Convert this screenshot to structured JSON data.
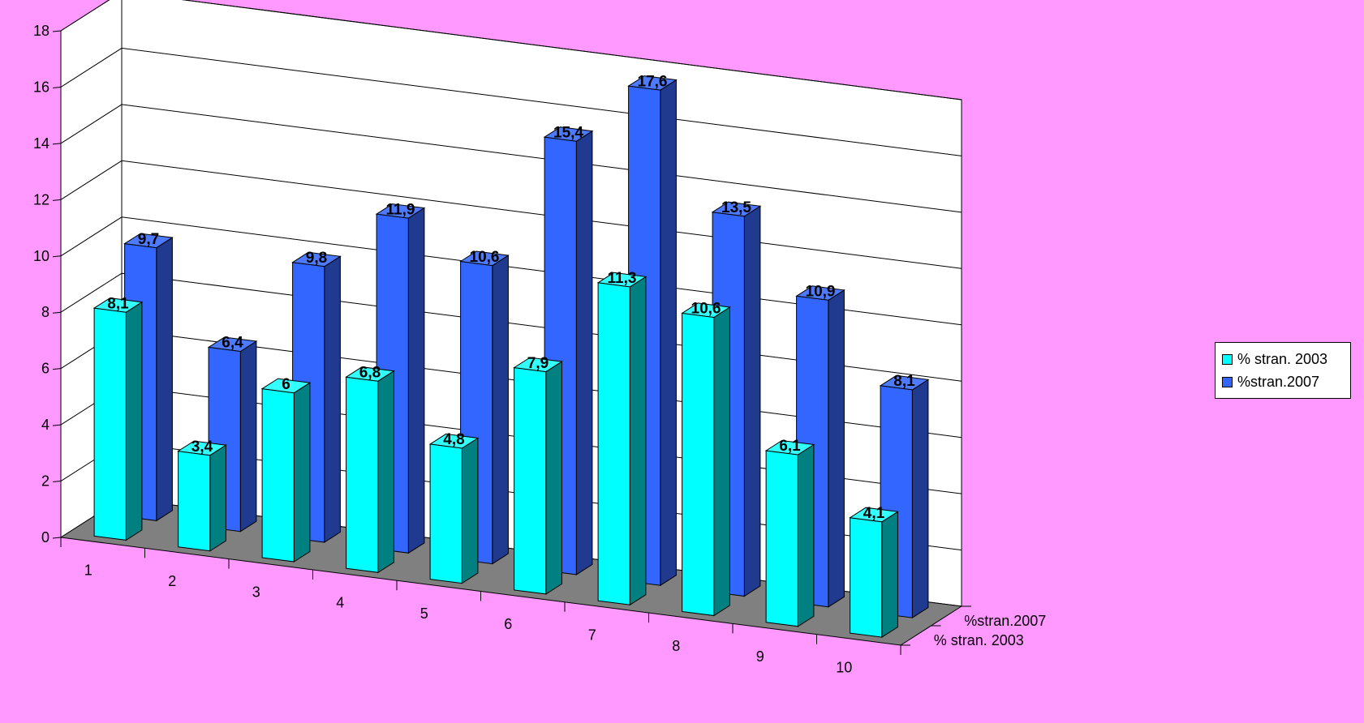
{
  "chart_data": {
    "type": "bar",
    "style": "3d-clustered-depth",
    "categories": [
      "1",
      "2",
      "3",
      "4",
      "5",
      "6",
      "7",
      "8",
      "9",
      "10"
    ],
    "series": [
      {
        "name": "% stran. 2003",
        "color": "#00ffff",
        "side": "#008080",
        "top": "#33ffff",
        "values": [
          8.1,
          3.4,
          6,
          6.8,
          4.8,
          7.9,
          11.3,
          10.6,
          6.1,
          4.1
        ],
        "labels": [
          "8,1",
          "3,4",
          "6",
          "6,8",
          "4,8",
          "7,9",
          "11,3",
          "10,6",
          "6,1",
          "4,1"
        ]
      },
      {
        "name": "%stran.2007",
        "color": "#3366ff",
        "side": "#1f3a8f",
        "top": "#4d7aff",
        "values": [
          9.7,
          6.4,
          9.8,
          11.9,
          10.6,
          15.4,
          17.6,
          13.5,
          10.9,
          8.1
        ],
        "labels": [
          "9,7",
          "6,4",
          "9,8",
          "11,9",
          "10,6",
          "15,4",
          "17,6",
          "13,5",
          "10,9",
          "8,1"
        ]
      }
    ],
    "depth_labels": [
      "%stran.2007",
      "% stran. 2003"
    ],
    "y_ticks": [
      "0",
      "2",
      "4",
      "6",
      "8",
      "10",
      "12",
      "14",
      "16",
      "18"
    ],
    "ylim": [
      0,
      18
    ],
    "grid": true,
    "legend": "right",
    "colors": {
      "background": "#ff99ff",
      "floor": "#808080",
      "wall": "#ffffff"
    }
  }
}
